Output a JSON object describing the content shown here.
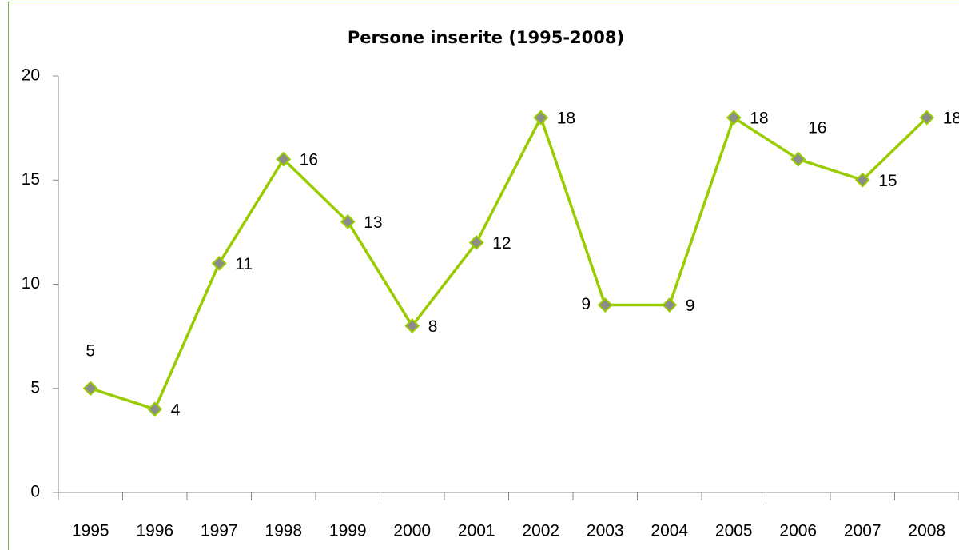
{
  "chart_data": {
    "type": "line",
    "title": "Persone inserite (1995-2008)",
    "categories": [
      "1995",
      "1996",
      "1997",
      "1998",
      "1999",
      "2000",
      "2001",
      "2002",
      "2003",
      "2004",
      "2005",
      "2006",
      "2007",
      "2008"
    ],
    "values": [
      5,
      4,
      11,
      16,
      13,
      8,
      12,
      18,
      9,
      9,
      18,
      16,
      15,
      18
    ],
    "color": "#99cc00",
    "marker_color": "#8c8c8c",
    "ylim": [
      0,
      20
    ],
    "yticks": [
      0,
      5,
      10,
      15,
      20
    ],
    "grid": false
  }
}
